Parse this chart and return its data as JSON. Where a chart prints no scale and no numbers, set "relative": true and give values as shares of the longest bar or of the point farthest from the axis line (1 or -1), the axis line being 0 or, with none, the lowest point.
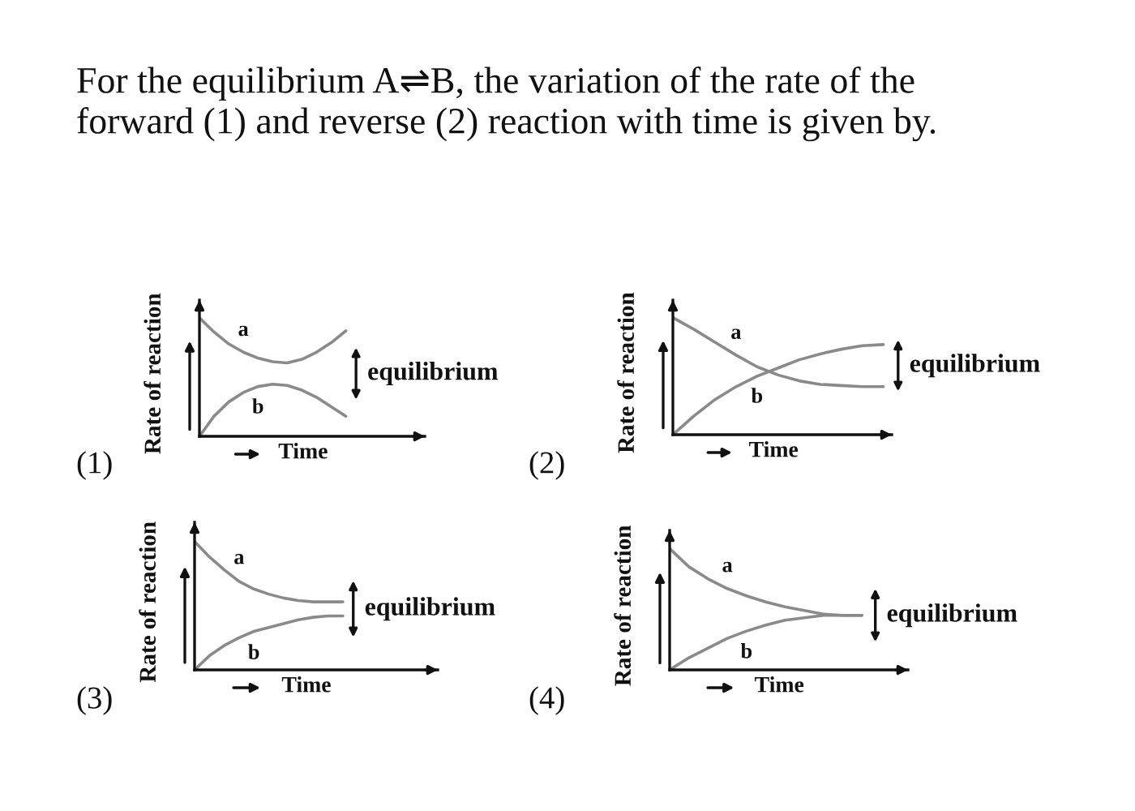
{
  "chart_data": [
    {
      "type": "line",
      "title": "(1)",
      "xlabel": "Time",
      "ylabel": "Rate of reaction",
      "relative": true,
      "categories": [
        null,
        null,
        null,
        null,
        null,
        null,
        null,
        null,
        null,
        null,
        null,
        null,
        null,
        null,
        null,
        null
      ],
      "series": [
        {
          "name": "a",
          "color": "#8a8a8a",
          "values": [
            1.0,
            0.88,
            0.78,
            0.71,
            0.66,
            0.63,
            0.62,
            0.65,
            0.71,
            0.79,
            0.89,
            null,
            null,
            null,
            null,
            null
          ]
        },
        {
          "name": "b",
          "color": "#8a8a8a",
          "values": [
            0,
            0.17,
            0.29,
            0.37,
            0.42,
            0.44,
            0.43,
            0.39,
            0.33,
            0.25,
            0.17,
            null,
            null,
            null,
            null,
            null
          ]
        }
      ],
      "annotations": [
        "For the equilibrium A⇌B, the variation of the rate of the\nforward (1) and reverse (2) reaction with time is given by.",
        "equilibrium"
      ]
    },
    {
      "type": "line",
      "title": "(2)",
      "xlabel": "Time",
      "ylabel": "Rate of reaction",
      "relative": true,
      "categories": [
        null,
        null,
        null,
        null,
        null,
        null,
        null,
        null,
        null,
        null,
        null
      ],
      "series": [
        {
          "name": "a",
          "color": "#8a8a8a",
          "values": [
            1.0,
            0.9,
            0.79,
            0.68,
            0.58,
            0.51,
            0.46,
            0.43,
            0.42,
            0.41,
            0.41
          ]
        },
        {
          "name": "b",
          "color": "#8a8a8a",
          "values": [
            0,
            0.16,
            0.3,
            0.41,
            0.5,
            0.57,
            0.64,
            0.69,
            0.73,
            0.76,
            0.77
          ]
        }
      ],
      "annotations": [
        "equilibrium"
      ]
    },
    {
      "type": "line",
      "title": "(3)",
      "xlabel": "Time",
      "ylabel": "Rate of reaction",
      "relative": true,
      "categories": [
        null,
        null,
        null,
        null,
        null,
        null,
        null,
        null,
        null,
        null,
        null,
        null,
        null,
        null,
        null,
        null,
        null
      ],
      "series": [
        {
          "name": "a",
          "color": "#8a8a8a",
          "values": [
            1.0,
            0.88,
            0.78,
            0.69,
            0.63,
            0.59,
            0.56,
            0.54,
            0.53,
            0.53,
            0.53,
            null,
            null,
            null,
            null,
            null,
            null
          ]
        },
        {
          "name": "b",
          "color": "#8a8a8a",
          "values": [
            0,
            0.11,
            0.19,
            0.25,
            0.3,
            0.33,
            0.36,
            0.39,
            0.41,
            0.42,
            0.42,
            null,
            null,
            null,
            null,
            null,
            null
          ]
        }
      ],
      "annotations": [
        "equilibrium"
      ]
    },
    {
      "type": "line",
      "title": "(4)",
      "xlabel": "Time",
      "ylabel": "Rate of reaction",
      "relative": true,
      "categories": [
        null,
        null,
        null,
        null,
        null,
        null,
        null,
        null,
        null,
        null,
        null,
        null,
        null
      ],
      "series": [
        {
          "name": "a",
          "color": "#8a8a8a",
          "values": [
            1.0,
            0.85,
            0.75,
            0.67,
            0.61,
            0.56,
            0.52,
            0.49,
            0.46,
            0.45,
            0.45,
            null,
            null
          ]
        },
        {
          "name": "b",
          "color": "#8a8a8a",
          "values": [
            0,
            0.1,
            0.18,
            0.26,
            0.32,
            0.37,
            0.41,
            0.43,
            0.45,
            0.45,
            0.45,
            null,
            null
          ]
        }
      ],
      "annotations": [
        "equilibrium"
      ]
    }
  ]
}
